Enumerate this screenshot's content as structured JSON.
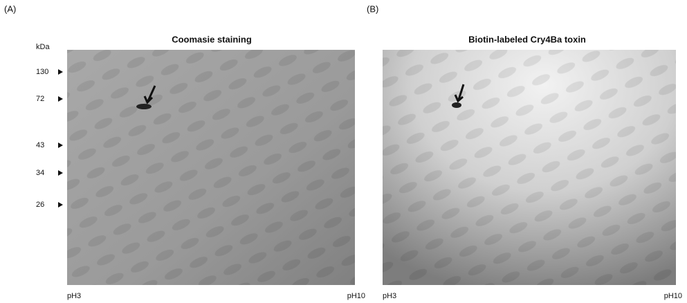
{
  "panels": [
    {
      "label": "(A)",
      "title": "Coomasie staining",
      "unit": "kDa",
      "markers": [
        "130",
        "72",
        "43",
        "34",
        "26"
      ],
      "ph_left": "pH3",
      "ph_right": "pH10"
    },
    {
      "label": "(B)",
      "title": "Biotin-labeled Cry4Ba toxin",
      "ph_left": "pH3",
      "ph_right": "pH10"
    }
  ]
}
